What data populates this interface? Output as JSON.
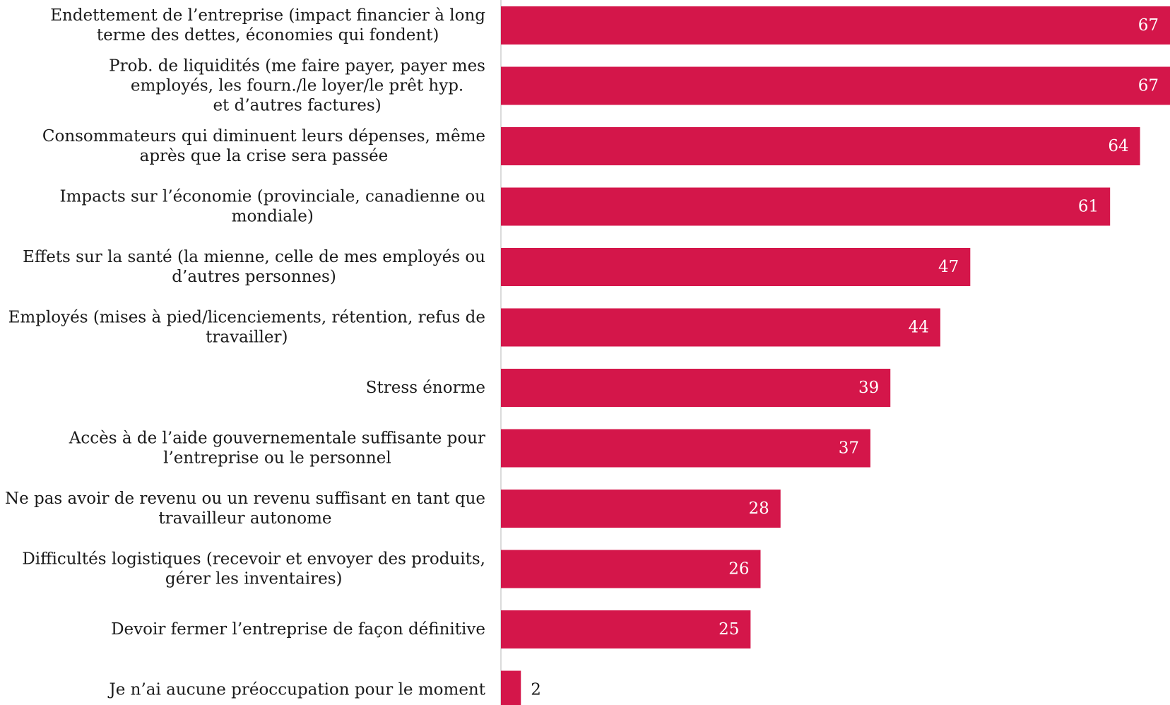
{
  "chart_data": {
    "type": "bar",
    "orientation": "horizontal",
    "title": "",
    "xlabel": "",
    "ylabel": "",
    "xlim": [
      0,
      67
    ],
    "grid": false,
    "legend": "none",
    "bar_color": "#d4164a",
    "categories": [
      [
        "Endettement de l’entreprise (impact financier à long",
        "terme des dettes, économies qui fondent)"
      ],
      [
        "Prob. de liquidités (me faire payer, payer mes",
        "employés, les fourn./le loyer/le prêt hyp.",
        "et d’autres factures)"
      ],
      [
        "Consommateurs qui diminuent leurs dépenses, même",
        "après que la crise sera passée"
      ],
      [
        "Impacts sur l’économie (provinciale, canadienne ou",
        "mondiale)"
      ],
      [
        "Effets sur la santé (la mienne, celle de mes employés ou",
        "d’autres personnes)"
      ],
      [
        "Employés (mises à pied/licenciements, rétention, refus de",
        "travailler)"
      ],
      [
        "Stress énorme"
      ],
      [
        "Accès à de l’aide gouvernementale suffisante pour",
        "l’entreprise ou le personnel"
      ],
      [
        "Ne pas avoir de revenu ou un revenu suffisant en tant que",
        "travailleur autonome"
      ],
      [
        "Difficultés logistiques (recevoir et envoyer des produits,",
        "gérer les inventaires)"
      ],
      [
        "Devoir fermer l’entreprise de façon définitive"
      ],
      [
        "Je n’ai aucune préoccupation pour le moment"
      ]
    ],
    "values": [
      67,
      67,
      64,
      61,
      47,
      44,
      39,
      37,
      28,
      26,
      25,
      2
    ]
  }
}
